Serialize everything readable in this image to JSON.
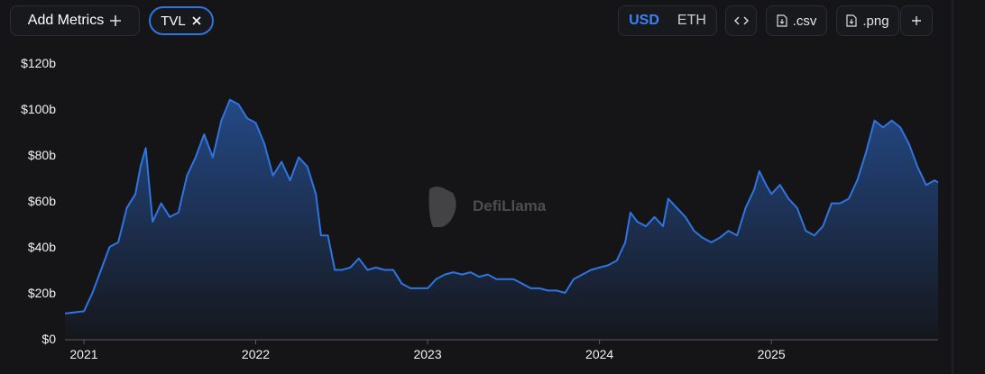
{
  "controls": {
    "add_metrics": "Add Metrics",
    "metric": "TVL",
    "currencies": [
      "USD",
      "ETH"
    ],
    "csv": ".csv",
    "png": ".png"
  },
  "watermark": "DefiLlama",
  "chart_data": {
    "type": "area",
    "x": [
      2020.89,
      2021.0,
      2021.05,
      2021.1,
      2021.15,
      2021.2,
      2021.25,
      2021.3,
      2021.33,
      2021.36,
      2021.4,
      2021.45,
      2021.5,
      2021.55,
      2021.6,
      2021.65,
      2021.7,
      2021.75,
      2021.8,
      2021.85,
      2021.9,
      2021.95,
      2022.0,
      2022.05,
      2022.1,
      2022.15,
      2022.2,
      2022.25,
      2022.3,
      2022.35,
      2022.38,
      2022.42,
      2022.46,
      2022.5,
      2022.55,
      2022.6,
      2022.65,
      2022.7,
      2022.75,
      2022.8,
      2022.85,
      2022.9,
      2022.95,
      2023.0,
      2023.05,
      2023.1,
      2023.15,
      2023.2,
      2023.25,
      2023.3,
      2023.35,
      2023.4,
      2023.45,
      2023.5,
      2023.55,
      2023.6,
      2023.65,
      2023.7,
      2023.75,
      2023.8,
      2023.85,
      2023.9,
      2023.95,
      2024.0,
      2024.05,
      2024.1,
      2024.15,
      2024.18,
      2024.22,
      2024.27,
      2024.32,
      2024.37,
      2024.4,
      2024.45,
      2024.5,
      2024.55,
      2024.6,
      2024.65,
      2024.7,
      2024.75,
      2024.8,
      2024.85,
      2024.9,
      2024.93,
      2024.97,
      2025.0,
      2025.05,
      2025.1,
      2025.15,
      2025.2,
      2025.25,
      2025.3,
      2025.35,
      2025.4,
      2025.45,
      2025.5,
      2025.55,
      2025.6,
      2025.65,
      2025.7,
      2025.75,
      2025.8,
      2025.85,
      2025.9,
      2025.95,
      2025.97
    ],
    "series": [
      {
        "name": "TVL",
        "color": "#2f74e0",
        "values": [
          11,
          12,
          20,
          30,
          40,
          42,
          57,
          63,
          75,
          83,
          51,
          59,
          53,
          55,
          71,
          79,
          89,
          79,
          95,
          104,
          102,
          96,
          94,
          85,
          71,
          77,
          69,
          79,
          75,
          63,
          45,
          45,
          30,
          30,
          31,
          35,
          30,
          31,
          30,
          30,
          24,
          22,
          22,
          22,
          26,
          28,
          29,
          28,
          29,
          27,
          28,
          26,
          26,
          26,
          24,
          22,
          22,
          21,
          21,
          20,
          26,
          28,
          30,
          31,
          32,
          34,
          42,
          55,
          51,
          49,
          53,
          49,
          61,
          57,
          53,
          47,
          44,
          42,
          44,
          47,
          45,
          57,
          65,
          73,
          67,
          63,
          67,
          61,
          57,
          47,
          45,
          49,
          59,
          59,
          61,
          69,
          81,
          95,
          92,
          95,
          92,
          85,
          75,
          67,
          69,
          68
        ]
      }
    ],
    "xlim": [
      2020.89,
      2025.97
    ],
    "xticks": [
      2021,
      2022,
      2023,
      2024,
      2025
    ],
    "ylim": [
      0,
      120
    ],
    "yticks": [
      {
        "value": 0,
        "label": "$0"
      },
      {
        "value": 20,
        "label": "$20b"
      },
      {
        "value": 40,
        "label": "$40b"
      },
      {
        "value": 60,
        "label": "$60b"
      },
      {
        "value": 80,
        "label": "$80b"
      },
      {
        "value": 100,
        "label": "$100b"
      },
      {
        "value": 120,
        "label": "$120b"
      }
    ]
  }
}
